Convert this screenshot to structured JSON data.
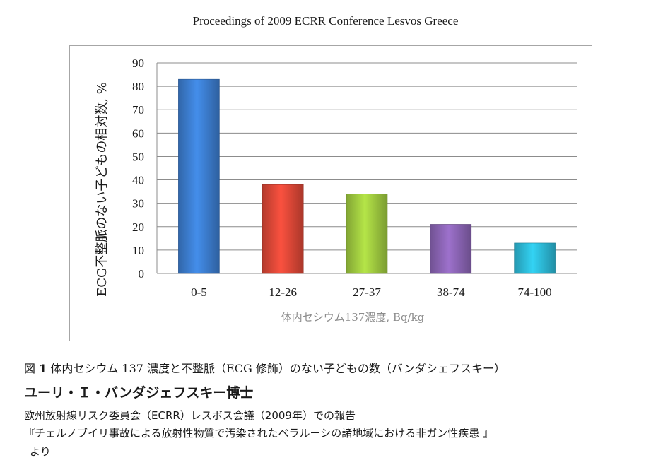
{
  "header": "Proceedings of 2009 ECRR Conference Lesvos Greece",
  "chart_data": {
    "type": "bar",
    "categories": [
      "0-5",
      "12-26",
      "27-37",
      "38-74",
      "74-100"
    ],
    "values": [
      83,
      38,
      34,
      21,
      13
    ],
    "colors": [
      "#3a78c7",
      "#d44535",
      "#99c23d",
      "#8560ad",
      "#2bb3cf"
    ],
    "ylabel": "ECG不整脈のない子どもの相対数, %",
    "xlabel": "体内セシウム137濃度, Bq/kg",
    "ylim": [
      0,
      90
    ],
    "yticks": [
      0,
      10,
      20,
      30,
      40,
      50,
      60,
      70,
      80,
      90
    ],
    "grid": true,
    "legend": "none"
  },
  "caption": {
    "prefix": "図",
    "number": "1",
    "text": "体内セシウム 137 濃度と不整脈（ECG 修飾）のない子どもの数（バンダシェフスキー）"
  },
  "source": {
    "author": "ユーリ・Ｉ・バンダジェフスキー博士",
    "line1": "欧州放射線リスク委員会（ECRR）レスボス会議（2009年）での報告",
    "line2": "『チェルノブイリ事故による放射性物質で汚染されたベラルーシの諸地域における非ガン性疾患 』",
    "line3": "より"
  }
}
